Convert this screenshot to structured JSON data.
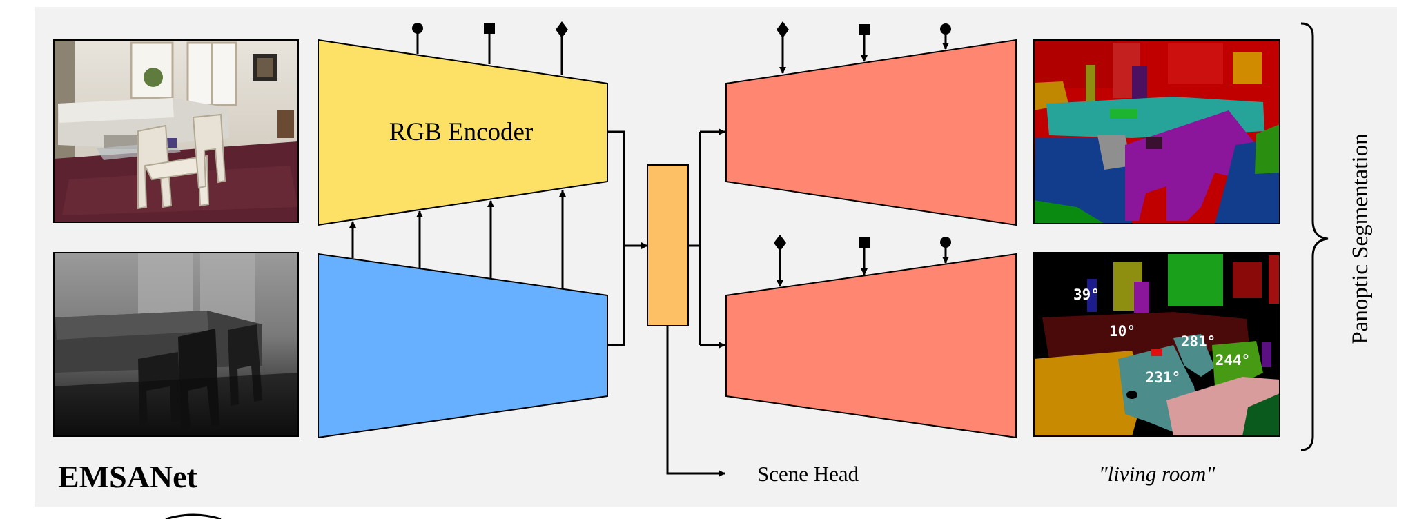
{
  "title": "EMSANet",
  "encoder": {
    "rgb_label": "RGB Encoder"
  },
  "scene": {
    "head_label": "Scene Head",
    "prediction": "\"living room\""
  },
  "output_label": "Panoptic Segmentation",
  "orientations": [
    "39°",
    "10°",
    "281°",
    "244°",
    "231°"
  ],
  "colors": {
    "rgb_encoder": "#fde166",
    "depth_encoder": "#66b0ff",
    "fusion": "#fdc064",
    "decoder": "#ff8671",
    "panel": "#f2f2f2"
  },
  "icons": [
    "circle-marker-icon",
    "square-marker-icon",
    "diamond-marker-icon"
  ]
}
